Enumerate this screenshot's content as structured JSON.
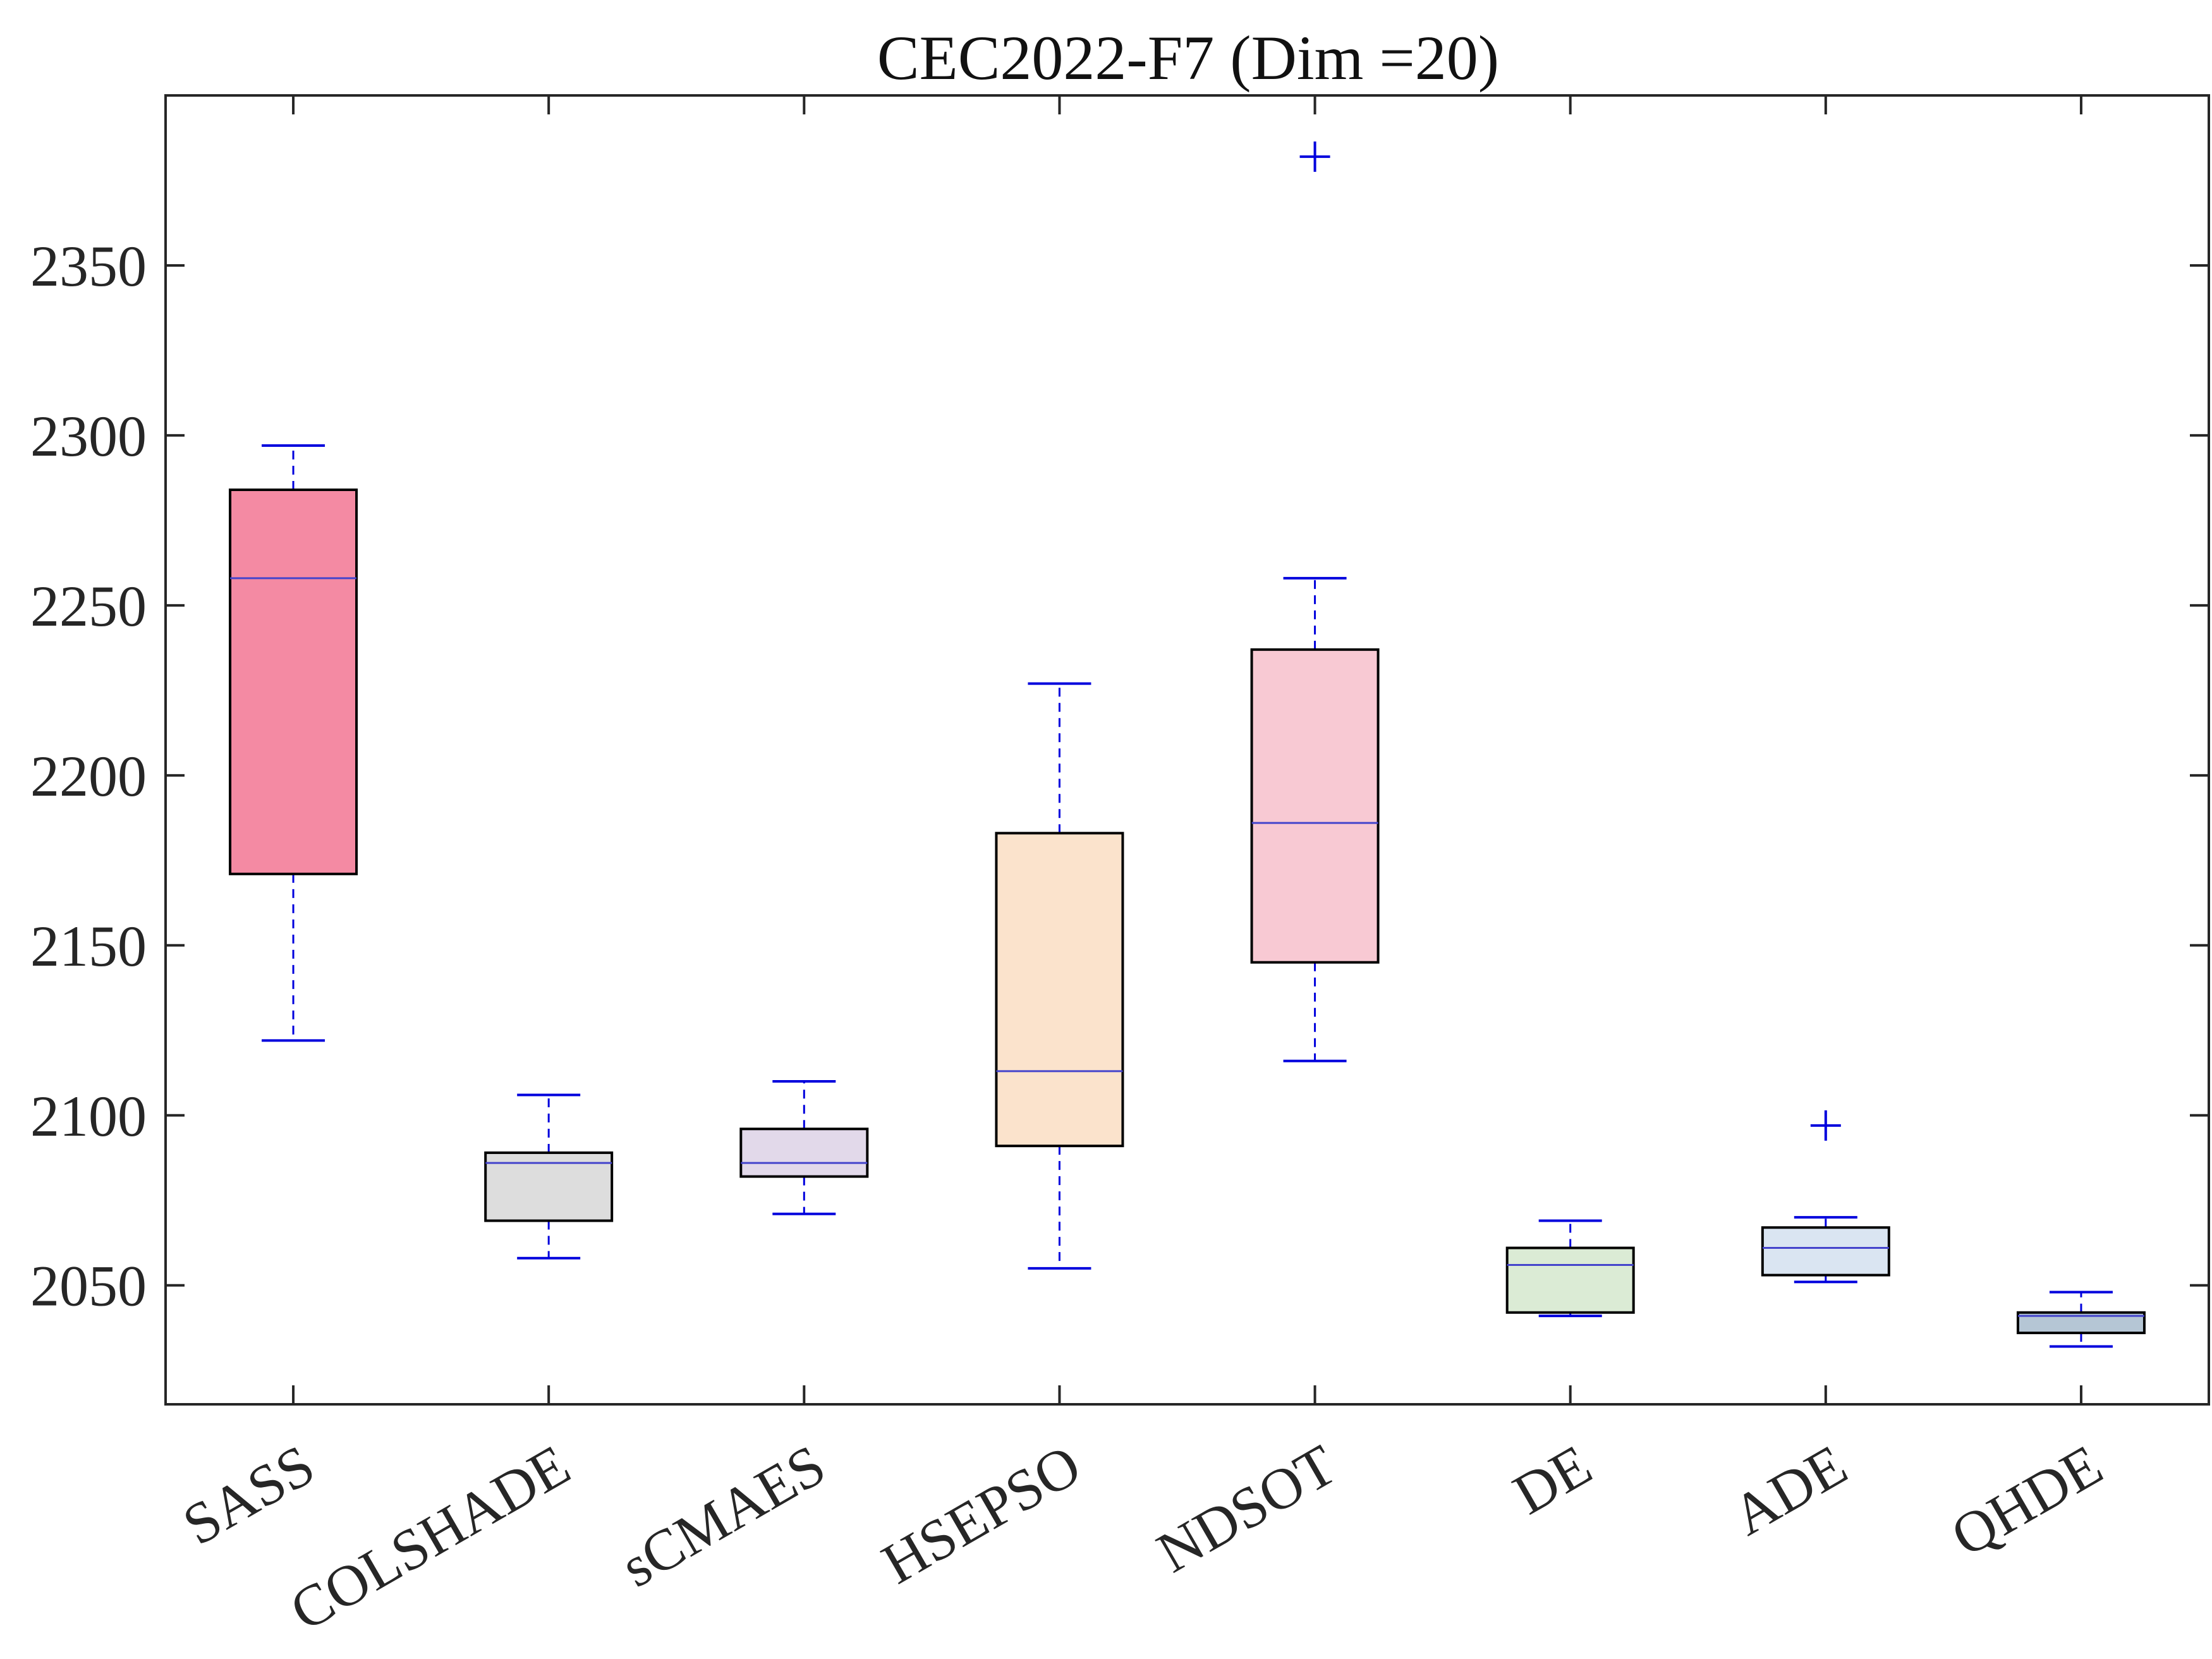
{
  "chart_data": {
    "type": "boxplot",
    "title": "CEC2022-F7 (Dim =20)",
    "xlabel": "",
    "ylabel": "",
    "ylim": [
      2015,
      2400
    ],
    "yticks": [
      2050,
      2100,
      2150,
      2200,
      2250,
      2300,
      2350
    ],
    "categories": [
      "SASS",
      "COLSHADE",
      "sCMAES",
      "HSEPSO",
      "NDSOT",
      "DE",
      "ADE",
      "QHDE"
    ],
    "boxes": [
      {
        "name": "SASS",
        "whisker_low": 2122,
        "q1": 2171,
        "median": 2258,
        "q3": 2284,
        "whisker_high": 2297,
        "outliers": [],
        "color": "#f48aa3"
      },
      {
        "name": "COLSHADE",
        "whisker_low": 2058,
        "q1": 2069,
        "median": 2086,
        "q3": 2089,
        "whisker_high": 2106,
        "outliers": [],
        "color": "#dddddd"
      },
      {
        "name": "sCMAES",
        "whisker_low": 2071,
        "q1": 2082,
        "median": 2086,
        "q3": 2096,
        "whisker_high": 2110,
        "outliers": [],
        "color": "#e2d9ea"
      },
      {
        "name": "HSEPSO",
        "whisker_low": 2055,
        "q1": 2091,
        "median": 2113,
        "q3": 2183,
        "whisker_high": 2227,
        "outliers": [],
        "color": "#fbe3cc"
      },
      {
        "name": "NDSOT",
        "whisker_low": 2116,
        "q1": 2145,
        "median": 2186,
        "q3": 2237,
        "whisker_high": 2258,
        "outliers": [
          2382
        ],
        "color": "#f8c9d3"
      },
      {
        "name": "DE",
        "whisker_low": 2041,
        "q1": 2042,
        "median": 2056,
        "q3": 2061,
        "whisker_high": 2069,
        "outliers": [],
        "color": "#dbebd5"
      },
      {
        "name": "ADE",
        "whisker_low": 2051,
        "q1": 2053,
        "median": 2061,
        "q3": 2067,
        "whisker_high": 2070,
        "outliers": [
          2097
        ],
        "color": "#dae5f2"
      },
      {
        "name": "QHDE",
        "whisker_low": 2032,
        "q1": 2036,
        "median": 2041,
        "q3": 2042,
        "whisker_high": 2048,
        "outliers": [],
        "color": "#b5c6d5"
      }
    ],
    "colors": {
      "whisker": "#0000dd",
      "median": "#4444cc",
      "box_edge": "#000000",
      "axes": "#262626"
    }
  }
}
